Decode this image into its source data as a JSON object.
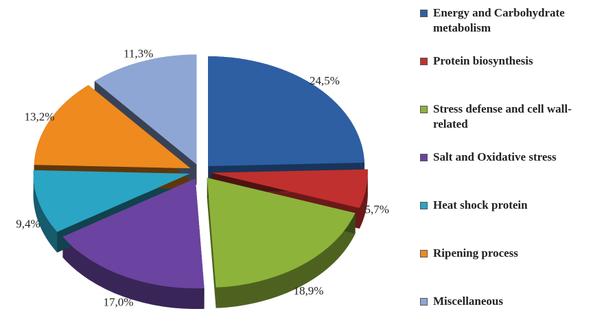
{
  "chart_data": {
    "type": "pie",
    "categories": [
      "Energy and Carbohydrate metabolism",
      "Protein biosynthesis",
      "Stress defense and cell wall-related",
      "Salt and Oxidative stress",
      "Heat shock protein",
      "Ripening process",
      "Miscellaneous"
    ],
    "values": [
      24.5,
      5.7,
      18.9,
      17.0,
      9.4,
      13.2,
      11.3
    ],
    "value_labels": [
      "24,5%",
      "5,7%",
      "18,9%",
      "17,0%",
      "9,4%",
      "13,2%",
      "11,3%"
    ],
    "colors": [
      "#2e5fa3",
      "#c0302e",
      "#8db33a",
      "#6a44a0",
      "#2aa5c4",
      "#ee8a1e",
      "#8ea6d4"
    ]
  }
}
